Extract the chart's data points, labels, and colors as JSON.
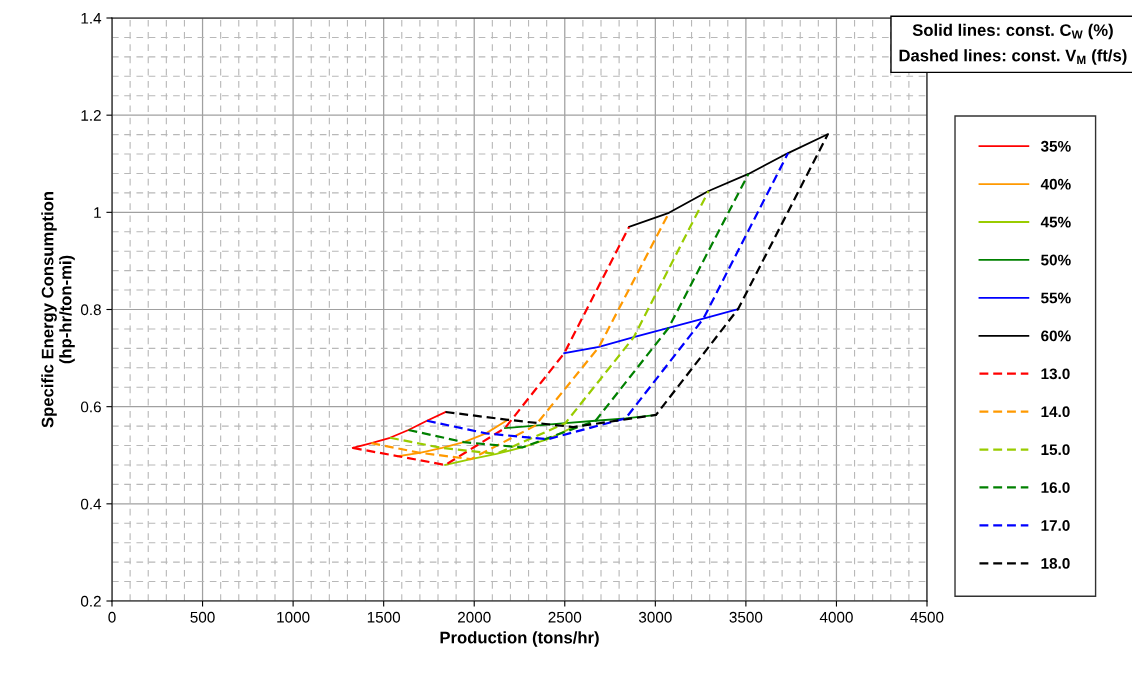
{
  "chart_data": {
    "type": "line",
    "xlabel": "Production (tons/hr)",
    "ylabel": "Specific Energy Consumption\n(hp-hr/ton-mi)",
    "xlim": [
      0,
      4500
    ],
    "xticks": [
      0,
      500,
      1000,
      1500,
      2000,
      2500,
      3000,
      3500,
      4000,
      4500
    ],
    "ylim": [
      0.2,
      1.4
    ],
    "yticks": [
      0.2,
      0.4,
      0.6,
      0.8,
      1,
      1.2,
      1.4
    ],
    "grid": true,
    "legend": "right",
    "marker": "none",
    "annotations": [
      "Solid lines: const. C$_{W}$ (%)\nDashed lines: const. V$_{M}$ (ft/s)"
    ],
    "series": [
      {
        "name": "35%",
        "color": "#ff0000",
        "line_style": "solid",
        "x": [
          1330,
          1432,
          1535,
          1637,
          1739,
          1842
        ],
        "values": [
          0.515,
          0.525,
          0.536,
          0.552,
          0.571,
          0.589
        ]
      },
      {
        "name": "40%",
        "color": "#ff9900",
        "line_style": "solid",
        "x": [
          1579,
          1700,
          1822,
          1943,
          2065,
          2186
        ],
        "values": [
          0.498,
          0.505,
          0.515,
          0.527,
          0.545,
          0.573
        ]
      },
      {
        "name": "45%",
        "color": "#99cc00",
        "line_style": "solid",
        "x": [
          1840,
          1982,
          2123,
          2265,
          2406,
          2548
        ],
        "values": [
          0.48,
          0.492,
          0.503,
          0.516,
          0.533,
          0.558
        ]
      },
      {
        "name": "50%",
        "color": "#008000",
        "line_style": "solid",
        "x": [
          2170,
          2337,
          2503,
          2670,
          2836,
          3004
        ],
        "values": [
          0.556,
          0.561,
          0.566,
          0.571,
          0.576,
          0.583
        ]
      },
      {
        "name": "55%",
        "color": "#0000ff",
        "line_style": "solid",
        "x": [
          2497,
          2689,
          2881,
          3073,
          3265,
          3457
        ],
        "values": [
          0.71,
          0.723,
          0.743,
          0.762,
          0.781,
          0.801
        ]
      },
      {
        "name": "60%",
        "color": "#000000",
        "line_style": "solid",
        "x": [
          2855,
          3075,
          3294,
          3514,
          3733,
          3953
        ],
        "values": [
          0.97,
          0.999,
          1.044,
          1.079,
          1.122,
          1.161
        ]
      },
      {
        "name": "13.0",
        "color": "#ff0000",
        "line_style": "dashed",
        "x": [
          1330,
          1579,
          1840,
          2170,
          2497,
          2855
        ],
        "values": [
          0.515,
          0.498,
          0.48,
          0.556,
          0.71,
          0.97
        ]
      },
      {
        "name": "14.0",
        "color": "#ff9900",
        "line_style": "dashed",
        "x": [
          1432,
          1700,
          1982,
          2337,
          2689,
          3075
        ],
        "values": [
          0.525,
          0.505,
          0.492,
          0.561,
          0.723,
          0.999
        ]
      },
      {
        "name": "15.0",
        "color": "#99cc00",
        "line_style": "dashed",
        "x": [
          1535,
          1822,
          2123,
          2503,
          2881,
          3294
        ],
        "values": [
          0.536,
          0.515,
          0.503,
          0.566,
          0.743,
          1.044
        ]
      },
      {
        "name": "16.0",
        "color": "#008000",
        "line_style": "dashed",
        "x": [
          1637,
          1943,
          2265,
          2670,
          3073,
          3514
        ],
        "values": [
          0.552,
          0.527,
          0.516,
          0.571,
          0.762,
          1.079
        ]
      },
      {
        "name": "17.0",
        "color": "#0000ff",
        "line_style": "dashed",
        "x": [
          1739,
          2065,
          2406,
          2836,
          3265,
          3733
        ],
        "values": [
          0.571,
          0.545,
          0.533,
          0.576,
          0.781,
          1.122
        ]
      },
      {
        "name": "18.0",
        "color": "#000000",
        "line_style": "dashed",
        "x": [
          1842,
          2186,
          2548,
          3004,
          3457,
          3953
        ],
        "values": [
          0.589,
          0.573,
          0.558,
          0.583,
          0.801,
          1.161
        ]
      }
    ]
  }
}
